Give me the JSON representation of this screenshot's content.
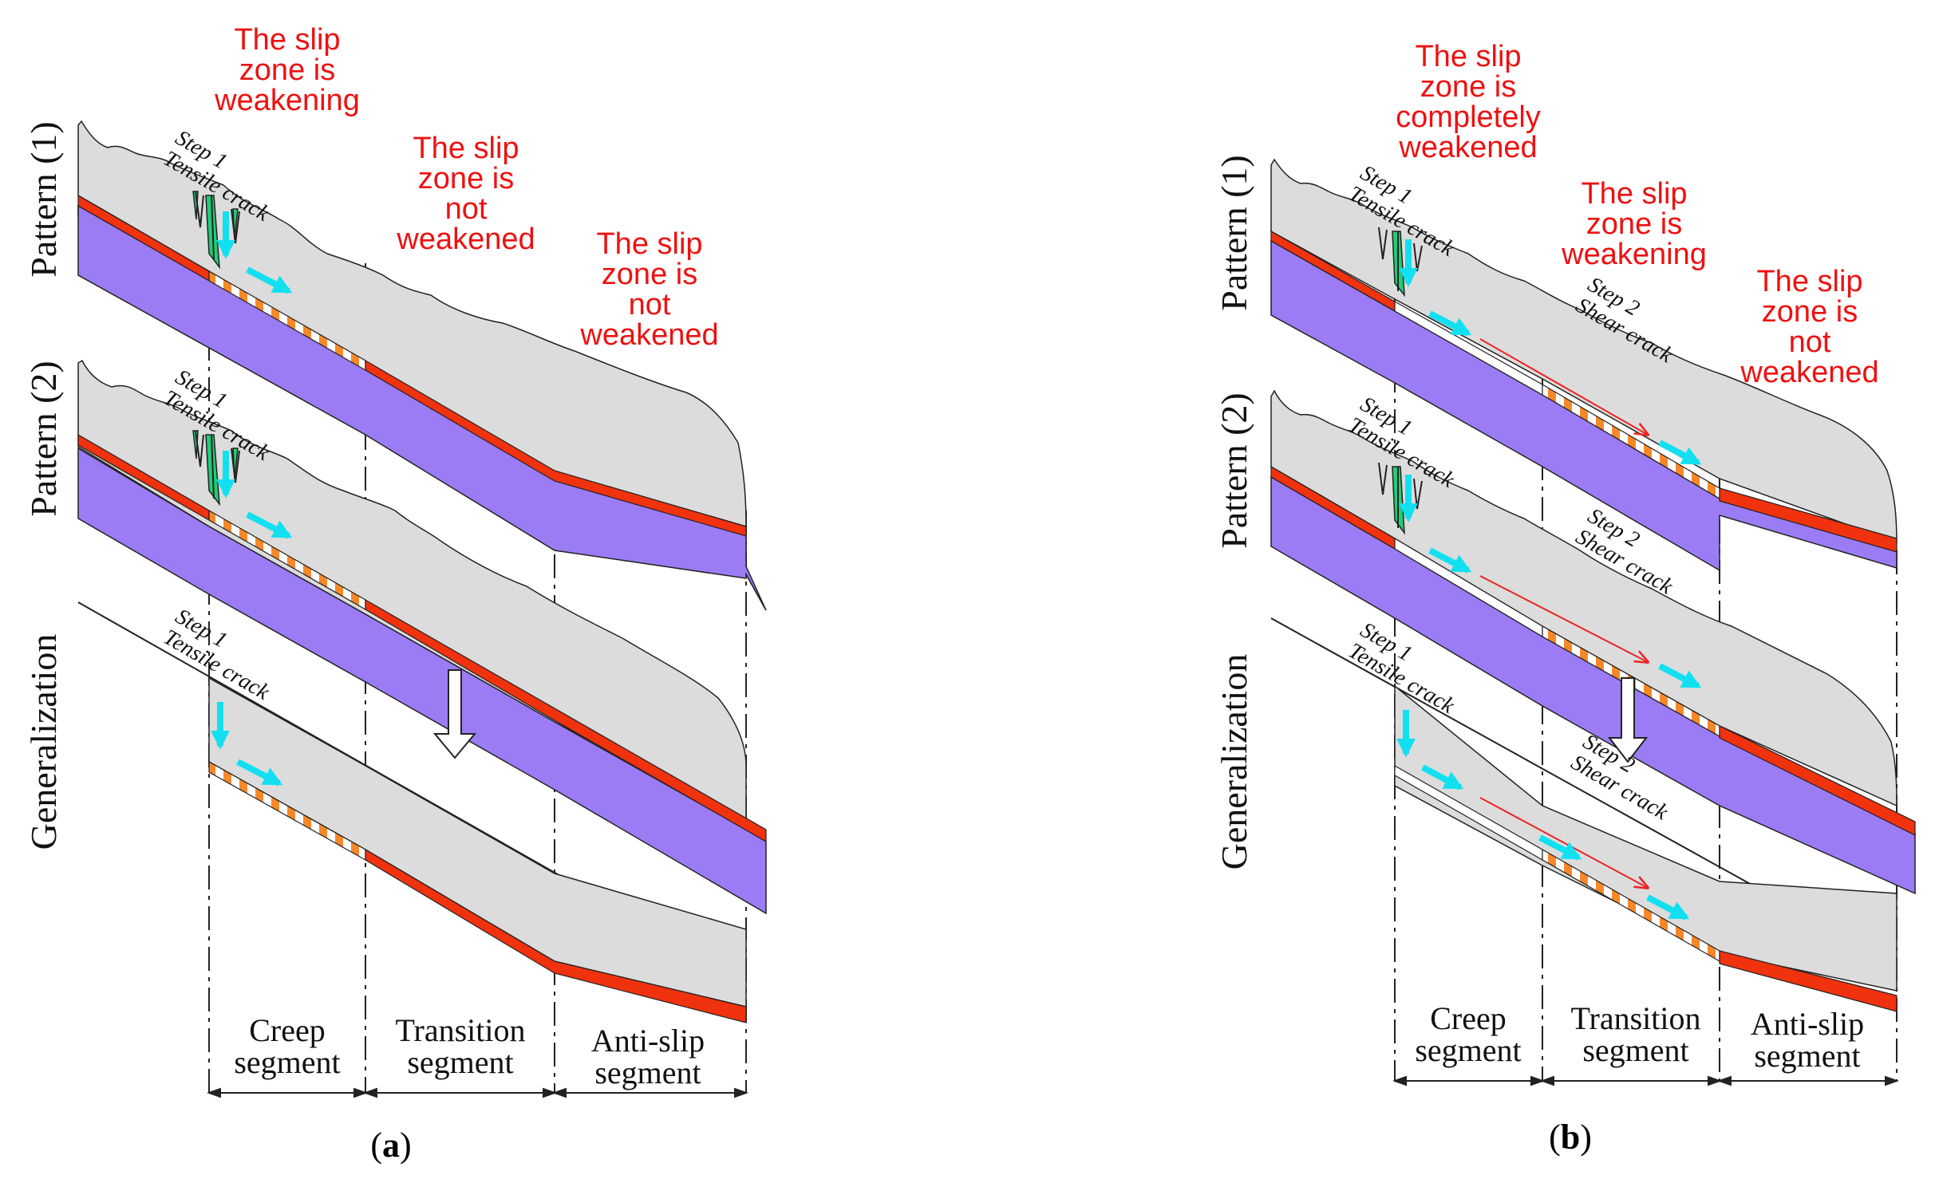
{
  "colors": {
    "rock": "#dcdcdc",
    "bedrock": "#9b7cf5",
    "slip_zone": "#f0320f",
    "tension_crack": "#22cc77",
    "arrow": "#12e0f0",
    "red_text": "#ee1111",
    "shear_arrow": "#ee2222"
  },
  "panel_a": {
    "label_open": "(",
    "label_letter": "a",
    "label_close": ")",
    "rows": {
      "p1": "Pattern (1)",
      "p2": "Pattern (2)",
      "gen": "Generalization"
    },
    "notes": {
      "n1": [
        "The slip",
        "zone is",
        "weakening"
      ],
      "n2": [
        "The slip",
        "zone is",
        "not",
        "weakened"
      ],
      "n3": [
        "The slip",
        "zone is",
        "not",
        "weakened"
      ]
    },
    "steps": {
      "s1": [
        "Step 1",
        "Tensile crack"
      ],
      "s2": [
        "Step 1",
        "Tensile crack"
      ],
      "s3": [
        "Step 1",
        "Tensile crack"
      ]
    },
    "segments": {
      "creep": [
        "Creep",
        "segment"
      ],
      "transition": [
        "Transition",
        "segment"
      ],
      "antislip": [
        "Anti-slip",
        "segment"
      ]
    }
  },
  "panel_b": {
    "label_open": "(",
    "label_letter": "b",
    "label_close": ")",
    "rows": {
      "p1": "Pattern (1)",
      "p2": "Pattern (2)",
      "gen": "Generalization"
    },
    "notes": {
      "n1": [
        "The slip",
        "zone is",
        "completely",
        "weakened"
      ],
      "n2": [
        "The slip",
        "zone is",
        "weakening"
      ],
      "n3": [
        "The slip",
        "zone is",
        "not",
        "weakened"
      ]
    },
    "steps": {
      "t1": [
        "Step 1",
        "Tensile crack"
      ],
      "t2": [
        "Step 1",
        "Tensile crack"
      ],
      "t3": [
        "Step 1",
        "Tensile crack"
      ],
      "sh1": [
        "Step 2",
        "Shear crack"
      ],
      "sh2": [
        "Step 2",
        "Shear crack"
      ],
      "sh3": [
        "Step 2",
        "Shear crack"
      ]
    },
    "segments": {
      "creep": [
        "Creep",
        "segment"
      ],
      "transition": [
        "Transition",
        "segment"
      ],
      "antislip": [
        "Anti-slip",
        "segment"
      ]
    }
  }
}
